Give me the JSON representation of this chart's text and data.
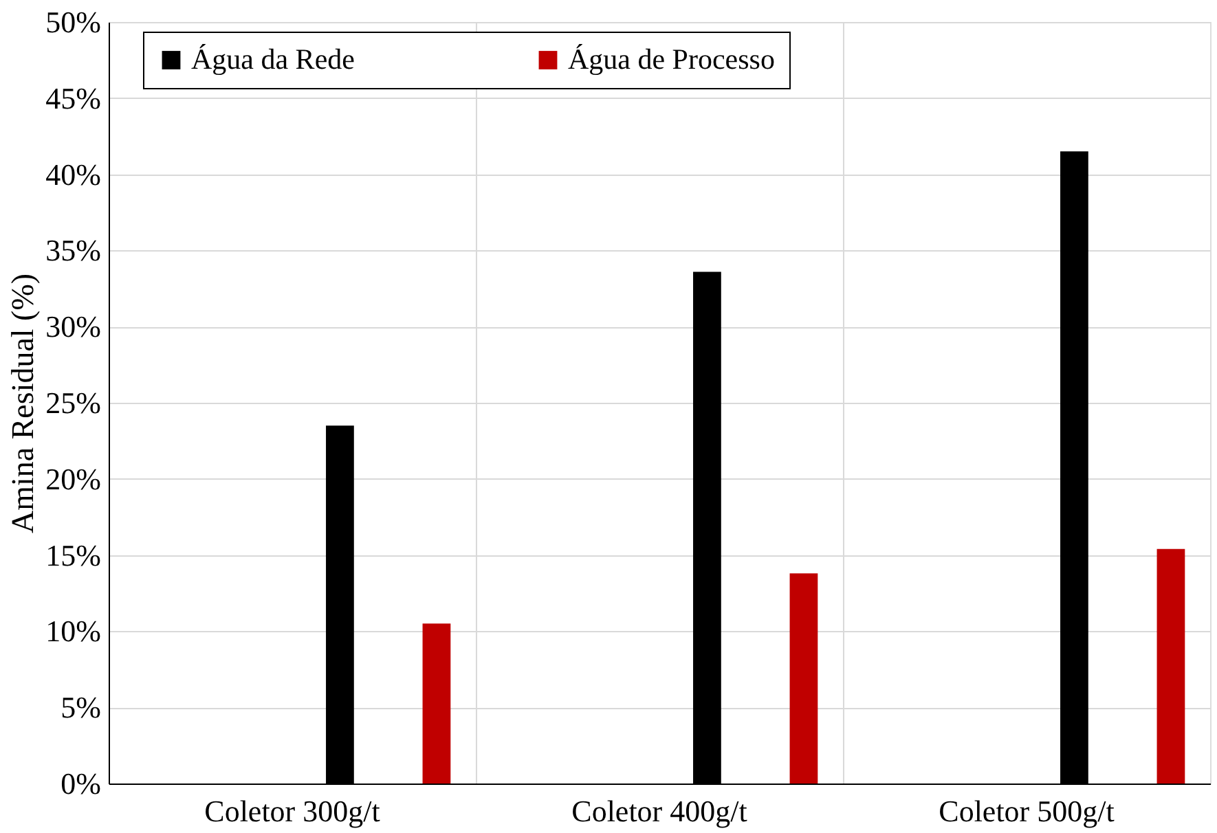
{
  "chart_data": {
    "type": "bar",
    "ylabel": "Amina Residual (%)",
    "categories": [
      "Coletor 300g/t",
      "Coletor 400g/t",
      "Coletor 500g/t"
    ],
    "series": [
      {
        "name": "Água da Rede",
        "color": "#000000",
        "values": [
          23.5,
          33.6,
          41.5
        ]
      },
      {
        "name": "Água de Processo",
        "color": "#c00000",
        "values": [
          10.5,
          13.8,
          15.4
        ]
      }
    ],
    "ylim": [
      0,
      50
    ],
    "yticks": [
      {
        "value": 0,
        "label": "0%"
      },
      {
        "value": 5,
        "label": "5%"
      },
      {
        "value": 10,
        "label": "10%"
      },
      {
        "value": 15,
        "label": "15%"
      },
      {
        "value": 20,
        "label": "20%"
      },
      {
        "value": 25,
        "label": "25%"
      },
      {
        "value": 30,
        "label": "30%"
      },
      {
        "value": 35,
        "label": "35%"
      },
      {
        "value": 40,
        "label": "40%"
      },
      {
        "value": 45,
        "label": "45%"
      },
      {
        "value": 50,
        "label": "50%"
      }
    ],
    "grid": true,
    "legend": "top"
  }
}
